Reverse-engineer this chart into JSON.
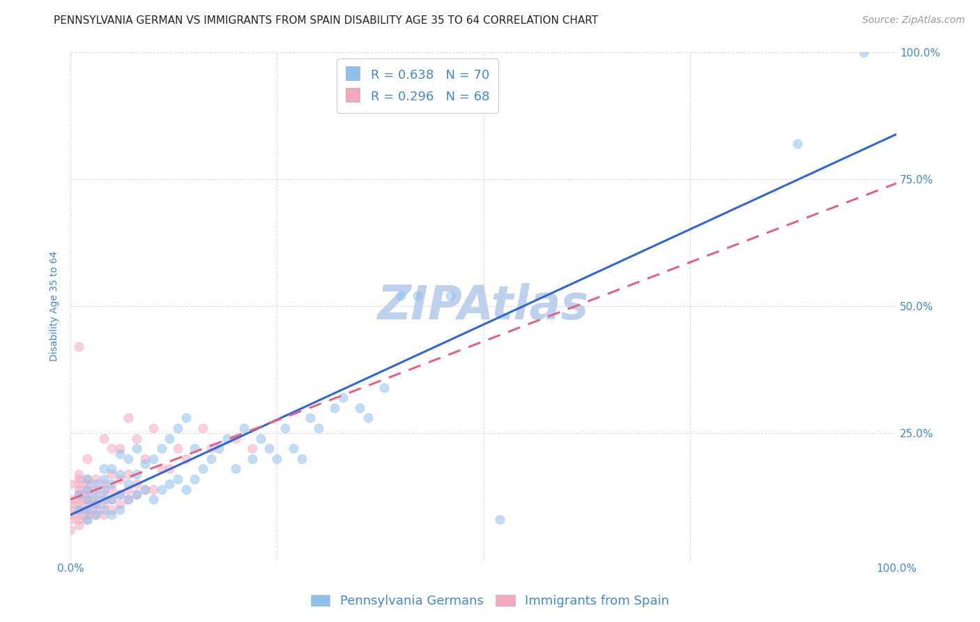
{
  "title": "PENNSYLVANIA GERMAN VS IMMIGRANTS FROM SPAIN DISABILITY AGE 35 TO 64 CORRELATION CHART",
  "source": "Source: ZipAtlas.com",
  "ylabel": "Disability Age 35 to 64",
  "xlim": [
    0.0,
    1.0
  ],
  "ylim": [
    0.0,
    1.0
  ],
  "xticks": [
    0.0,
    0.25,
    0.5,
    0.75,
    1.0
  ],
  "yticks": [
    0.0,
    0.25,
    0.5,
    0.75,
    1.0
  ],
  "xticklabels": [
    "0.0%",
    "",
    "",
    "",
    "100.0%"
  ],
  "yticklabels_right": [
    "",
    "25.0%",
    "50.0%",
    "75.0%",
    "100.0%"
  ],
  "blue_R": 0.638,
  "blue_N": 70,
  "pink_R": 0.296,
  "pink_N": 68,
  "blue_color": "#92C0ED",
  "pink_color": "#F4A8BE",
  "blue_line_color": "#3366CC",
  "pink_line_color": "#DD6688",
  "watermark": "ZIPAtlas",
  "legend_label_blue": "Pennsylvania Germans",
  "legend_label_pink": "Immigrants from Spain",
  "blue_scatter_x": [
    0.01,
    0.01,
    0.02,
    0.02,
    0.02,
    0.02,
    0.02,
    0.03,
    0.03,
    0.03,
    0.03,
    0.04,
    0.04,
    0.04,
    0.04,
    0.04,
    0.05,
    0.05,
    0.05,
    0.05,
    0.06,
    0.06,
    0.06,
    0.06,
    0.07,
    0.07,
    0.07,
    0.08,
    0.08,
    0.08,
    0.09,
    0.09,
    0.1,
    0.1,
    0.11,
    0.11,
    0.12,
    0.12,
    0.13,
    0.13,
    0.14,
    0.14,
    0.15,
    0.15,
    0.16,
    0.17,
    0.18,
    0.19,
    0.2,
    0.21,
    0.22,
    0.23,
    0.24,
    0.25,
    0.26,
    0.27,
    0.28,
    0.29,
    0.3,
    0.32,
    0.33,
    0.35,
    0.36,
    0.38,
    0.4,
    0.42,
    0.46,
    0.52,
    0.88,
    0.96
  ],
  "blue_scatter_y": [
    0.1,
    0.13,
    0.08,
    0.1,
    0.12,
    0.14,
    0.16,
    0.09,
    0.11,
    0.13,
    0.15,
    0.1,
    0.12,
    0.14,
    0.16,
    0.18,
    0.09,
    0.12,
    0.15,
    0.18,
    0.1,
    0.13,
    0.17,
    0.21,
    0.12,
    0.15,
    0.2,
    0.13,
    0.17,
    0.22,
    0.14,
    0.19,
    0.12,
    0.2,
    0.14,
    0.22,
    0.15,
    0.24,
    0.16,
    0.26,
    0.14,
    0.28,
    0.16,
    0.22,
    0.18,
    0.2,
    0.22,
    0.24,
    0.18,
    0.26,
    0.2,
    0.24,
    0.22,
    0.2,
    0.26,
    0.22,
    0.2,
    0.28,
    0.26,
    0.3,
    0.32,
    0.3,
    0.28,
    0.34,
    0.52,
    0.52,
    0.52,
    0.08,
    0.82,
    1.0
  ],
  "pink_scatter_x": [
    0.0,
    0.0,
    0.0,
    0.0,
    0.0,
    0.0,
    0.0,
    0.01,
    0.01,
    0.01,
    0.01,
    0.01,
    0.01,
    0.01,
    0.01,
    0.01,
    0.01,
    0.01,
    0.01,
    0.02,
    0.02,
    0.02,
    0.02,
    0.02,
    0.02,
    0.02,
    0.02,
    0.02,
    0.02,
    0.03,
    0.03,
    0.03,
    0.03,
    0.03,
    0.03,
    0.04,
    0.04,
    0.04,
    0.04,
    0.04,
    0.05,
    0.05,
    0.05,
    0.05,
    0.05,
    0.06,
    0.06,
    0.06,
    0.06,
    0.07,
    0.07,
    0.07,
    0.07,
    0.08,
    0.08,
    0.08,
    0.09,
    0.09,
    0.1,
    0.1,
    0.11,
    0.12,
    0.13,
    0.14,
    0.16,
    0.17,
    0.2,
    0.22
  ],
  "pink_scatter_y": [
    0.06,
    0.08,
    0.09,
    0.1,
    0.11,
    0.12,
    0.15,
    0.07,
    0.08,
    0.09,
    0.1,
    0.11,
    0.12,
    0.13,
    0.14,
    0.15,
    0.16,
    0.17,
    0.42,
    0.08,
    0.09,
    0.1,
    0.11,
    0.12,
    0.13,
    0.14,
    0.15,
    0.16,
    0.2,
    0.09,
    0.1,
    0.11,
    0.12,
    0.14,
    0.16,
    0.09,
    0.11,
    0.13,
    0.15,
    0.24,
    0.1,
    0.12,
    0.14,
    0.17,
    0.22,
    0.11,
    0.13,
    0.16,
    0.22,
    0.12,
    0.14,
    0.17,
    0.28,
    0.13,
    0.15,
    0.24,
    0.14,
    0.2,
    0.14,
    0.26,
    0.18,
    0.18,
    0.22,
    0.2,
    0.26,
    0.22,
    0.24,
    0.22
  ],
  "background_color": "#FFFFFF",
  "grid_color": "#DDDDDD",
  "title_color": "#222222",
  "axis_label_color": "#4488CC",
  "tick_color": "#4488CC",
  "watermark_color": "#BDD0EC",
  "title_fontsize": 11,
  "axis_label_fontsize": 10,
  "tick_fontsize": 11,
  "legend_fontsize": 13,
  "watermark_fontsize": 48,
  "source_fontsize": 10,
  "scatter_size": 90,
  "scatter_alpha": 0.55,
  "line_width": 2.2
}
